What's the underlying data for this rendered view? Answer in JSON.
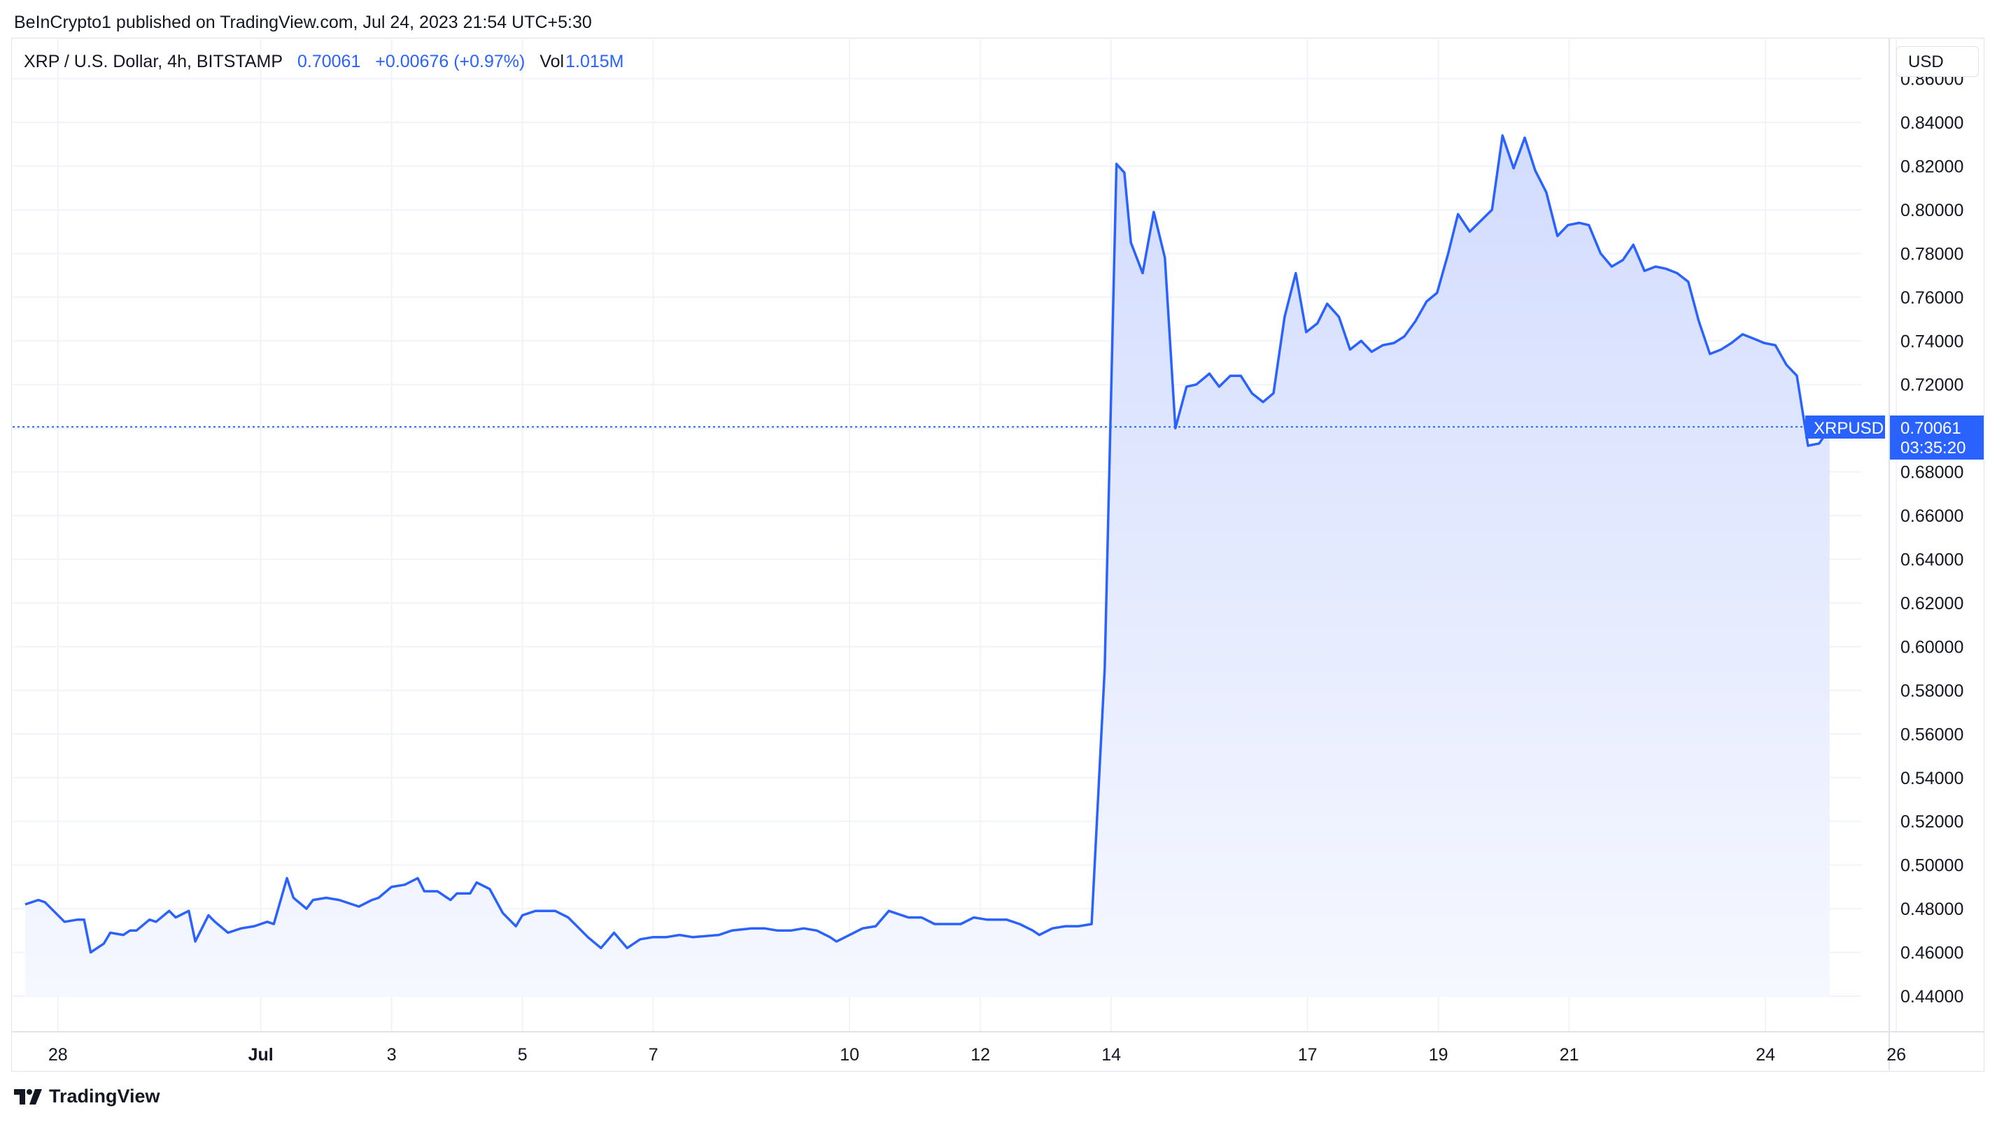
{
  "header": {
    "publish_line": "BeInCrypto1 published on TradingView.com, Jul 24, 2023 21:54 UTC+5:30"
  },
  "legend": {
    "symbol": "XRP / U.S. Dollar, 4h, BITSTAMP",
    "last": "0.70061",
    "change": "+0.00676 (+0.97%)",
    "vol_label": "Vol",
    "vol_value": "1.015M"
  },
  "currency_button": "USD",
  "price_tag": {
    "ticker": "XRPUSD",
    "price": "0.70061",
    "countdown": "03:35:20"
  },
  "footer": {
    "brand": "TradingView"
  },
  "colors": {
    "line": "#2962ff",
    "grid": "#f0f3fa",
    "fill_top": "#d4defe",
    "fill_bottom": "#fafbff"
  },
  "chart_data": {
    "type": "area",
    "title": "XRP / U.S. Dollar, 4h, BITSTAMP",
    "xlabel": "",
    "ylabel": "",
    "ylim": [
      0.43,
      0.86
    ],
    "grid": true,
    "last_price_line": 0.70061,
    "y_ticks": [
      "0.44000",
      "0.46000",
      "0.48000",
      "0.50000",
      "0.52000",
      "0.54000",
      "0.56000",
      "0.58000",
      "0.60000",
      "0.62000",
      "0.64000",
      "0.66000",
      "0.68000",
      "0.70000",
      "0.72000",
      "0.74000",
      "0.76000",
      "0.78000",
      "0.80000",
      "0.82000",
      "0.84000",
      "0.86000"
    ],
    "x_ticks": [
      {
        "label": "28",
        "x": 0.8
      },
      {
        "label": "Jul",
        "x": 3.9,
        "bold": true
      },
      {
        "label": "3",
        "x": 5.9
      },
      {
        "label": "5",
        "x": 7.9
      },
      {
        "label": "7",
        "x": 9.9
      },
      {
        "label": "10",
        "x": 12.9
      },
      {
        "label": "12",
        "x": 14.9
      },
      {
        "label": "14",
        "x": 16.9
      },
      {
        "label": "17",
        "x": 19.9
      },
      {
        "label": "19",
        "x": 21.9
      },
      {
        "label": "21",
        "x": 23.9
      },
      {
        "label": "24",
        "x": 26.9
      },
      {
        "label": "26",
        "x": 28.9
      }
    ],
    "x_unit": "days since Jun 27 (4h candles)",
    "points": [
      [
        0.3,
        0.482
      ],
      [
        0.5,
        0.484
      ],
      [
        0.6,
        0.483
      ],
      [
        0.9,
        0.474
      ],
      [
        1.1,
        0.475
      ],
      [
        1.2,
        0.475
      ],
      [
        1.3,
        0.46
      ],
      [
        1.5,
        0.464
      ],
      [
        1.6,
        0.469
      ],
      [
        1.8,
        0.468
      ],
      [
        1.9,
        0.47
      ],
      [
        2.0,
        0.47
      ],
      [
        2.2,
        0.475
      ],
      [
        2.3,
        0.474
      ],
      [
        2.5,
        0.479
      ],
      [
        2.6,
        0.476
      ],
      [
        2.8,
        0.479
      ],
      [
        2.9,
        0.465
      ],
      [
        3.1,
        0.477
      ],
      [
        3.2,
        0.474
      ],
      [
        3.4,
        0.469
      ],
      [
        3.6,
        0.471
      ],
      [
        3.8,
        0.472
      ],
      [
        4.0,
        0.474
      ],
      [
        4.1,
        0.473
      ],
      [
        4.3,
        0.494
      ],
      [
        4.4,
        0.485
      ],
      [
        4.6,
        0.48
      ],
      [
        4.7,
        0.484
      ],
      [
        4.9,
        0.485
      ],
      [
        5.1,
        0.484
      ],
      [
        5.4,
        0.481
      ],
      [
        5.6,
        0.484
      ],
      [
        5.7,
        0.485
      ],
      [
        5.9,
        0.49
      ],
      [
        6.1,
        0.491
      ],
      [
        6.3,
        0.494
      ],
      [
        6.4,
        0.488
      ],
      [
        6.6,
        0.488
      ],
      [
        6.8,
        0.484
      ],
      [
        6.9,
        0.487
      ],
      [
        7.1,
        0.487
      ],
      [
        7.2,
        0.492
      ],
      [
        7.4,
        0.489
      ],
      [
        7.6,
        0.478
      ],
      [
        7.8,
        0.472
      ],
      [
        7.9,
        0.477
      ],
      [
        8.1,
        0.479
      ],
      [
        8.4,
        0.479
      ],
      [
        8.6,
        0.476
      ],
      [
        8.8,
        0.47
      ],
      [
        8.9,
        0.467
      ],
      [
        9.1,
        0.462
      ],
      [
        9.3,
        0.469
      ],
      [
        9.5,
        0.462
      ],
      [
        9.7,
        0.466
      ],
      [
        9.9,
        0.467
      ],
      [
        10.1,
        0.467
      ],
      [
        10.3,
        0.468
      ],
      [
        10.5,
        0.467
      ],
      [
        10.9,
        0.468
      ],
      [
        11.1,
        0.47
      ],
      [
        11.4,
        0.471
      ],
      [
        11.6,
        0.471
      ],
      [
        11.8,
        0.47
      ],
      [
        12.0,
        0.47
      ],
      [
        12.2,
        0.471
      ],
      [
        12.4,
        0.47
      ],
      [
        12.6,
        0.467
      ],
      [
        12.7,
        0.465
      ],
      [
        12.9,
        0.468
      ],
      [
        13.1,
        0.471
      ],
      [
        13.3,
        0.472
      ],
      [
        13.5,
        0.479
      ],
      [
        13.8,
        0.476
      ],
      [
        14.0,
        0.476
      ],
      [
        14.2,
        0.473
      ],
      [
        14.4,
        0.473
      ],
      [
        14.6,
        0.473
      ],
      [
        14.8,
        0.476
      ],
      [
        15.0,
        0.475
      ],
      [
        15.3,
        0.475
      ],
      [
        15.5,
        0.473
      ],
      [
        15.7,
        0.47
      ],
      [
        15.8,
        0.468
      ],
      [
        16.0,
        0.471
      ],
      [
        16.2,
        0.472
      ],
      [
        16.4,
        0.472
      ],
      [
        16.6,
        0.473
      ],
      [
        16.8,
        0.59
      ],
      [
        16.98,
        0.821
      ],
      [
        17.1,
        0.817
      ],
      [
        17.2,
        0.785
      ],
      [
        17.38,
        0.771
      ],
      [
        17.55,
        0.799
      ],
      [
        17.72,
        0.778
      ],
      [
        17.88,
        0.7
      ],
      [
        18.05,
        0.719
      ],
      [
        18.2,
        0.72
      ],
      [
        18.4,
        0.725
      ],
      [
        18.55,
        0.719
      ],
      [
        18.72,
        0.724
      ],
      [
        18.88,
        0.724
      ],
      [
        19.05,
        0.716
      ],
      [
        19.22,
        0.712
      ],
      [
        19.38,
        0.716
      ],
      [
        19.55,
        0.751
      ],
      [
        19.72,
        0.771
      ],
      [
        19.88,
        0.744
      ],
      [
        20.05,
        0.748
      ],
      [
        20.2,
        0.757
      ],
      [
        20.38,
        0.751
      ],
      [
        20.55,
        0.736
      ],
      [
        20.72,
        0.74
      ],
      [
        20.88,
        0.735
      ],
      [
        21.05,
        0.738
      ],
      [
        21.22,
        0.739
      ],
      [
        21.38,
        0.742
      ],
      [
        21.55,
        0.749
      ],
      [
        21.72,
        0.758
      ],
      [
        21.88,
        0.762
      ],
      [
        22.05,
        0.78
      ],
      [
        22.2,
        0.798
      ],
      [
        22.38,
        0.79
      ],
      [
        22.55,
        0.795
      ],
      [
        22.72,
        0.8
      ],
      [
        22.88,
        0.834
      ],
      [
        23.05,
        0.819
      ],
      [
        23.22,
        0.833
      ],
      [
        23.38,
        0.818
      ],
      [
        23.55,
        0.808
      ],
      [
        23.72,
        0.788
      ],
      [
        23.88,
        0.793
      ],
      [
        24.05,
        0.794
      ],
      [
        24.2,
        0.793
      ],
      [
        24.38,
        0.78
      ],
      [
        24.55,
        0.774
      ],
      [
        24.72,
        0.777
      ],
      [
        24.88,
        0.784
      ],
      [
        25.05,
        0.772
      ],
      [
        25.22,
        0.774
      ],
      [
        25.38,
        0.773
      ],
      [
        25.55,
        0.771
      ],
      [
        25.72,
        0.767
      ],
      [
        25.88,
        0.749
      ],
      [
        26.05,
        0.734
      ],
      [
        26.22,
        0.736
      ],
      [
        26.38,
        0.739
      ],
      [
        26.55,
        0.743
      ],
      [
        26.72,
        0.741
      ],
      [
        26.88,
        0.739
      ],
      [
        27.05,
        0.738
      ],
      [
        27.22,
        0.729
      ],
      [
        27.38,
        0.724
      ],
      [
        27.55,
        0.692
      ],
      [
        27.72,
        0.693
      ],
      [
        27.88,
        0.7
      ]
    ]
  }
}
